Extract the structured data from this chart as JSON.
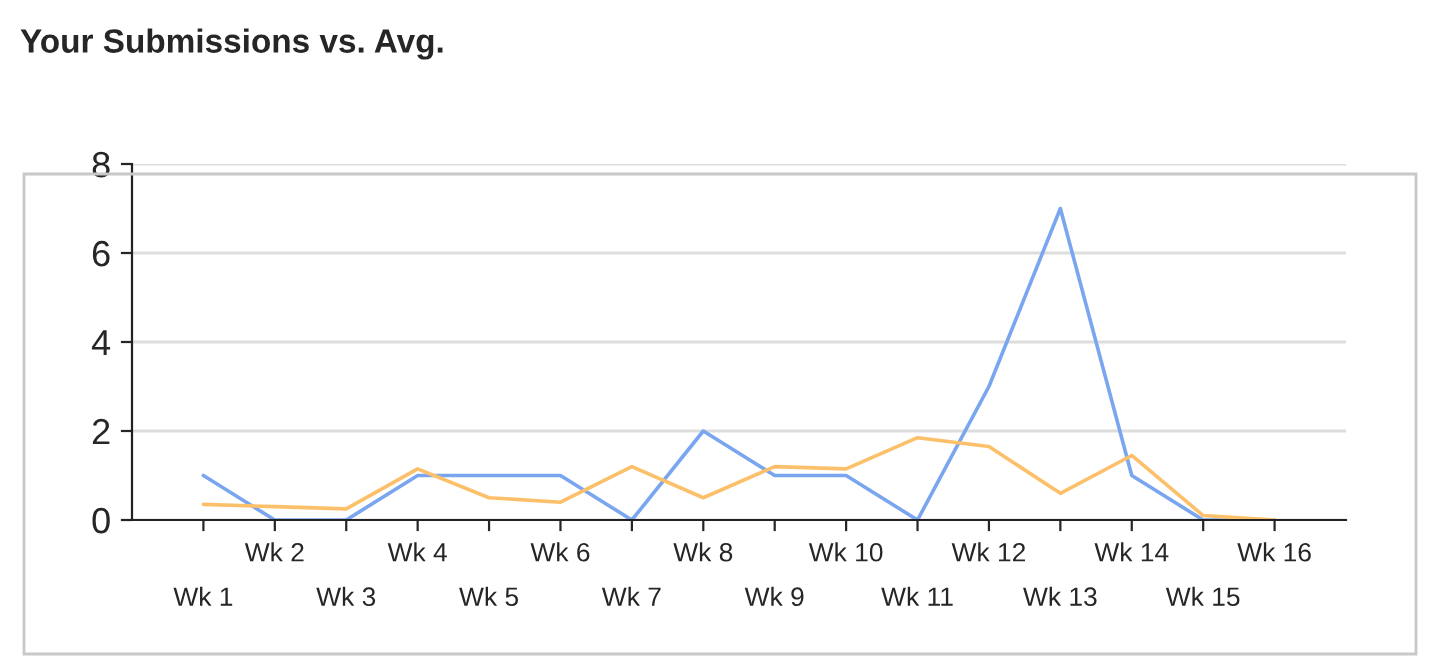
{
  "chart_data": {
    "type": "line",
    "title": "Your Submissions vs. Avg.",
    "categories": [
      "Wk 1",
      "Wk 2",
      "Wk 3",
      "Wk 4",
      "Wk 5",
      "Wk 6",
      "Wk 7",
      "Wk 8",
      "Wk 9",
      "Wk 10",
      "Wk 11",
      "Wk 12",
      "Wk 13",
      "Wk 14",
      "Wk 15",
      "Wk 16"
    ],
    "series": [
      {
        "color": "#7aa6f0",
        "values": [
          1,
          0,
          0,
          1,
          1,
          1,
          0,
          2,
          1,
          1,
          0,
          3,
          7,
          1,
          0,
          0
        ]
      },
      {
        "color": "#fdc06a",
        "values": [
          0.35,
          0.3,
          0.25,
          1.15,
          0.5,
          0.4,
          1.2,
          0.5,
          1.2,
          1.15,
          1.85,
          1.65,
          0.6,
          1.45,
          0.1,
          0
        ]
      }
    ],
    "ylim": [
      0,
      8
    ],
    "yticks": [
      0,
      2,
      4,
      6,
      8
    ],
    "grid": "y",
    "legend": false,
    "marker": "none",
    "line_style": "solid"
  }
}
